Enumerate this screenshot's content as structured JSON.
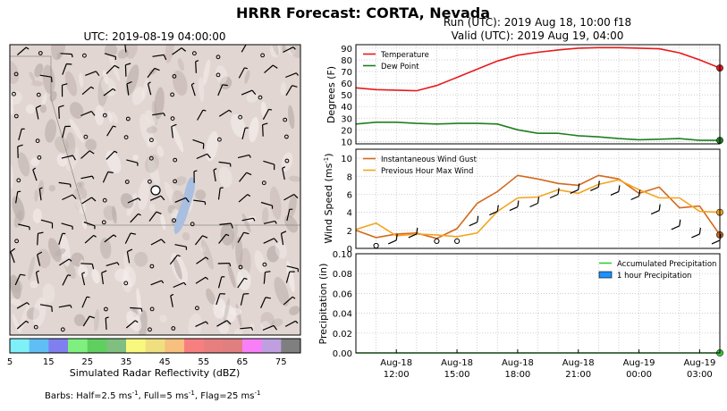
{
  "title": "HRRR Forecast: CORTA, Nevada",
  "map": {
    "title": "UTC: 2019-08-19 04:00:00",
    "colorbar": {
      "label": "Simulated Radar Reflectivity (dBZ)",
      "ticks": [
        "5",
        "15",
        "25",
        "35",
        "45",
        "55",
        "65",
        "75"
      ],
      "colors": [
        "#7ff0f8",
        "#5fbff5",
        "#7f7ff0",
        "#7ff07f",
        "#5fcf5f",
        "#7fbf7f",
        "#f8f87f",
        "#f0df7f",
        "#f8c07f",
        "#f87f7f",
        "#e87f7f",
        "#df7f7f",
        "#f87ff8",
        "#bf9fdf",
        "#7f7f7f"
      ]
    },
    "barbs_note": "Barbs: Half=2.5 ms",
    "barbs_note_sup1": "-1",
    "barbs_note_mid": ", Full=5 ms",
    "barbs_note_sup2": "-1",
    "barbs_note_mid2": ", Flag=25 ms",
    "barbs_note_sup3": "-1"
  },
  "run_title": "Run (UTC): 2019 Aug 18, 10:00 f18",
  "valid_title": "Valid (UTC): 2019 Aug 19, 04:00",
  "chart_data": [
    {
      "type": "line",
      "ylabel": "Degrees (F)",
      "ylim": [
        8,
        93
      ],
      "yticks": [
        10,
        20,
        30,
        40,
        50,
        60,
        70,
        80,
        90
      ],
      "xlim": [
        10,
        28
      ],
      "grid": true,
      "legend": "top-left",
      "series": [
        {
          "name": "Temperature",
          "color": "#e8191b",
          "x": [
            10,
            11,
            12,
            13,
            14,
            15,
            16,
            17,
            18,
            19,
            20,
            21,
            22,
            23,
            24,
            25,
            26,
            27,
            28
          ],
          "values": [
            56,
            54.5,
            54,
            53.5,
            58,
            65,
            72,
            79,
            84,
            86.5,
            88.5,
            90,
            90.5,
            90.5,
            90,
            89.5,
            86,
            80,
            73
          ]
        },
        {
          "name": "Dew Point",
          "color": "#1f7f1f",
          "x": [
            10,
            11,
            12,
            13,
            14,
            15,
            16,
            17,
            18,
            19,
            20,
            21,
            22,
            23,
            24,
            25,
            26,
            27,
            28
          ],
          "values": [
            25,
            26.5,
            26.5,
            25.5,
            25,
            25.5,
            25.5,
            25,
            20,
            17,
            17,
            15,
            14,
            12.5,
            11.5,
            12,
            12.5,
            11,
            11
          ]
        }
      ]
    },
    {
      "type": "line",
      "ylabel": "Wind Speed (ms",
      "ylabel_sup": "-1",
      "ylabel_end": ")",
      "ylim": [
        0,
        11
      ],
      "yticks": [
        0,
        2,
        4,
        6,
        8,
        10
      ],
      "xlim": [
        10,
        28
      ],
      "grid": true,
      "legend": "top-left",
      "series": [
        {
          "name": "Instantaneous Wind Gust",
          "color": "#d2691e",
          "x": [
            10,
            11,
            12,
            13,
            14,
            15,
            16,
            17,
            18,
            19,
            20,
            21,
            22,
            23,
            24,
            25,
            26,
            27,
            28
          ],
          "values": [
            2,
            1.2,
            1.6,
            1.7,
            1.1,
            2.2,
            5,
            6.3,
            8.1,
            7.7,
            7.2,
            7,
            8.1,
            7.7,
            6.1,
            6.8,
            4.5,
            4.7,
            1.5
          ]
        },
        {
          "name": "Previous Hour Max Wind",
          "color": "#f5a31f",
          "x": [
            10,
            11,
            12,
            13,
            14,
            15,
            16,
            17,
            18,
            19,
            20,
            21,
            22,
            23,
            24,
            25,
            26,
            27,
            28
          ],
          "values": [
            2.1,
            2.8,
            1.4,
            1.6,
            1.5,
            1.3,
            1.7,
            4.1,
            5.6,
            5.7,
            6.5,
            6.1,
            7.1,
            7.6,
            6.5,
            5.6,
            5.6,
            4.1,
            4
          ]
        }
      ]
    },
    {
      "type": "line",
      "ylabel": "Precipitation (in)",
      "ylim": [
        0,
        0.1
      ],
      "yticks": [
        "0.00",
        "0.02",
        "0.04",
        "0.06",
        "0.08",
        "0.10"
      ],
      "xlim": [
        10,
        28
      ],
      "grid": true,
      "legend": "top-right",
      "xticks": [
        {
          "x": 12,
          "line1": "Aug-18",
          "line2": "12:00"
        },
        {
          "x": 15,
          "line1": "Aug-18",
          "line2": "15:00"
        },
        {
          "x": 18,
          "line1": "Aug-18",
          "line2": "18:00"
        },
        {
          "x": 21,
          "line1": "Aug-18",
          "line2": "21:00"
        },
        {
          "x": 24,
          "line1": "Aug-19",
          "line2": "00:00"
        },
        {
          "x": 27,
          "line1": "Aug-19",
          "line2": "03:00"
        }
      ],
      "series": [
        {
          "name": "Accumulated Precipitation",
          "color": "#33cc33",
          "x": [
            10,
            28
          ],
          "values": [
            0,
            0
          ]
        },
        {
          "name": "1 hour Precipitation",
          "color": "#1e90ff",
          "kind": "bar",
          "x": [],
          "values": []
        }
      ]
    }
  ]
}
